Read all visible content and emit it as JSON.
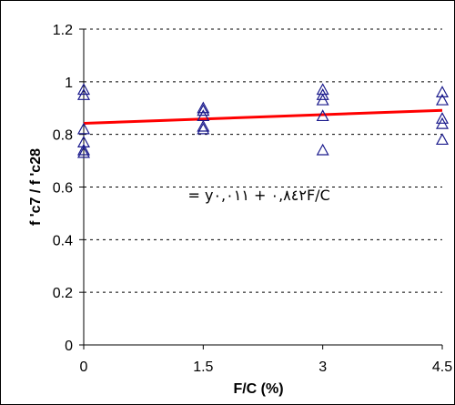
{
  "chart_data": {
    "type": "scatter",
    "title": "",
    "xlabel": "F/C (%)",
    "ylabel": "f 'c7 / f 'c28",
    "xlim": [
      0,
      4.5
    ],
    "ylim": [
      0,
      1.2
    ],
    "x_ticks": [
      "0",
      "1.5",
      "3",
      "4.5"
    ],
    "y_ticks": [
      "0",
      "0.2",
      "0.4",
      "0.6",
      "0.8",
      "1",
      "1.2"
    ],
    "x_tick_values": [
      0,
      1.5,
      3,
      4.5
    ],
    "y_tick_values": [
      0,
      0.2,
      0.4,
      0.6,
      0.8,
      1.0,
      1.2
    ],
    "grid": "horizontal dashed",
    "marker_color": "#1a1a8c",
    "trend_color": "#ff0000",
    "series": [
      {
        "marker": "triangle",
        "points": [
          [
            0,
            0.97
          ],
          [
            0,
            0.95
          ],
          [
            0,
            0.82
          ],
          [
            0,
            0.77
          ],
          [
            0,
            0.74
          ],
          [
            0,
            0.73
          ],
          [
            1.5,
            0.9
          ],
          [
            1.5,
            0.89
          ],
          [
            1.5,
            0.87
          ],
          [
            1.5,
            0.83
          ],
          [
            1.5,
            0.82
          ],
          [
            3,
            0.97
          ],
          [
            3,
            0.95
          ],
          [
            3,
            0.93
          ],
          [
            3,
            0.87
          ],
          [
            3,
            0.74
          ],
          [
            4.5,
            0.96
          ],
          [
            4.5,
            0.93
          ],
          [
            4.5,
            0.86
          ],
          [
            4.5,
            0.84
          ],
          [
            4.5,
            0.78
          ]
        ]
      }
    ],
    "trendline": {
      "intercept": 0.842,
      "slope": 0.011,
      "x_range": [
        0,
        4.5
      ]
    },
    "annotation": {
      "text": "= y٠,٨٤٢ + ٠,٠١١F/C",
      "x": 2.2,
      "y": 0.55
    }
  }
}
